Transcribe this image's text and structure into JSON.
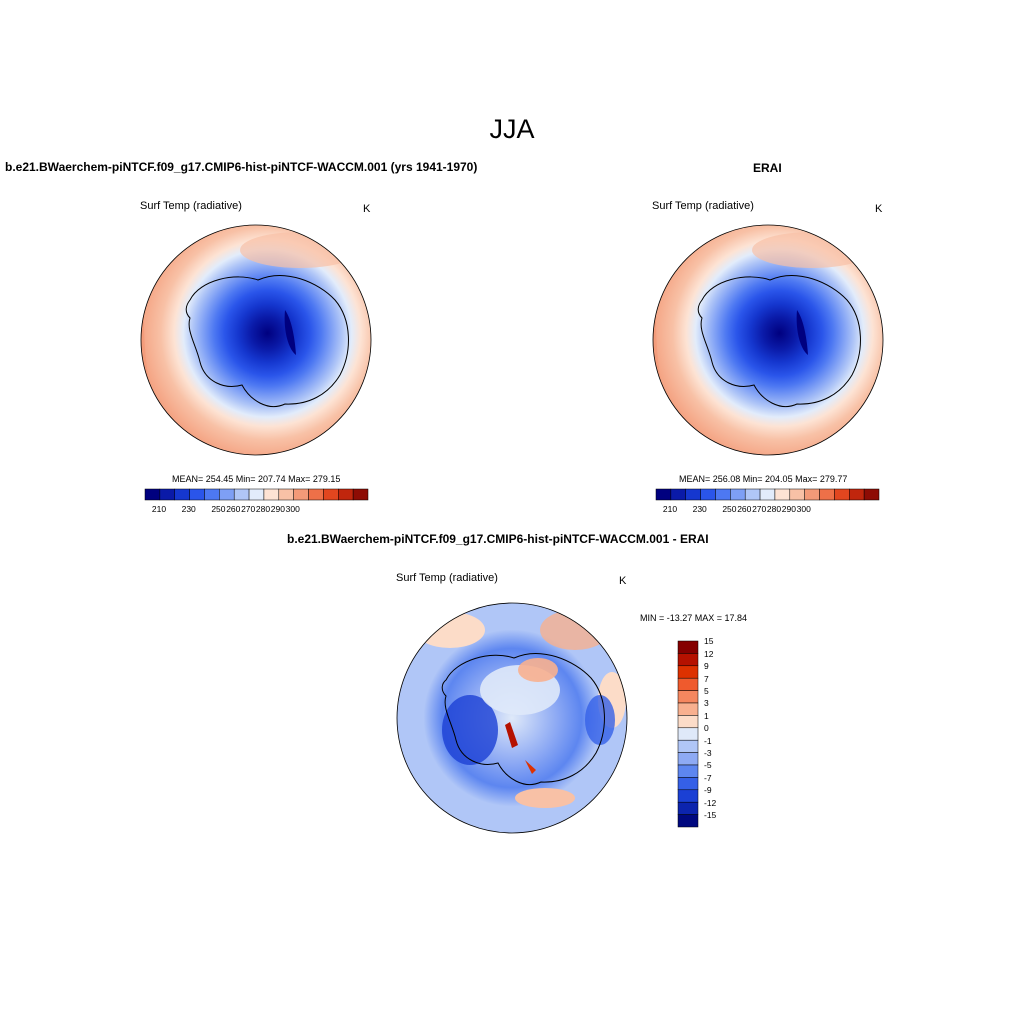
{
  "title": "JJA",
  "panels": [
    {
      "title": "b.e21.BWaerchem-piNTCF.f09_g17.CMIP6-hist-piNTCF-WACCM.001 (yrs 1941-1970)",
      "variable": "Surf Temp (radiative)",
      "units": "K",
      "stats": "MEAN= 254.45  Min= 207.74  Max= 279.15",
      "mean": 254.45,
      "min": 207.74,
      "max": 279.15,
      "colorbar_labels": [
        "210",
        "230",
        "250",
        "260",
        "270",
        "280",
        "290",
        "300"
      ]
    },
    {
      "title": "ERAI",
      "variable": "Surf Temp (radiative)",
      "units": "K",
      "stats": "MEAN= 256.08  Min= 204.05  Max= 279.77",
      "mean": 256.08,
      "min": 204.05,
      "max": 279.77,
      "colorbar_labels": [
        "210",
        "230",
        "250",
        "260",
        "270",
        "280",
        "290",
        "300"
      ]
    },
    {
      "title": "b.e21.BWaerchem-piNTCF.f09_g17.CMIP6-hist-piNTCF-WACCM.001 - ERAI",
      "variable": "Surf Temp (radiative)",
      "units": "K",
      "stats": "MIN = -13.27 MAX =  17.84",
      "min": -13.27,
      "max": 17.84,
      "colorbar_labels": [
        "15",
        "12",
        "9",
        "7",
        "5",
        "3",
        "1",
        "0",
        "-1",
        "-3",
        "-5",
        "-7",
        "-9",
        "-12",
        "-15"
      ]
    }
  ],
  "colors": {
    "abs_scale": [
      "#00007f",
      "#0a1aa8",
      "#1537cf",
      "#2a55ea",
      "#4d78f2",
      "#7e9ff5",
      "#b0c6f7",
      "#e2ecfb",
      "#fde3d4",
      "#f8c1a6",
      "#f39a78",
      "#ee7048",
      "#e2461f",
      "#c0260d",
      "#8e0c04"
    ],
    "diff_scale_top_to_bottom": [
      "#850000",
      "#b51100",
      "#dd3100",
      "#ef5a2d",
      "#f5875f",
      "#f8b08f",
      "#fcdcc8",
      "#dfe9f9",
      "#b0c6f7",
      "#8eaaf4",
      "#5d86f0",
      "#3560e7",
      "#1b40d4",
      "#0c24ae",
      "#00087f"
    ]
  }
}
